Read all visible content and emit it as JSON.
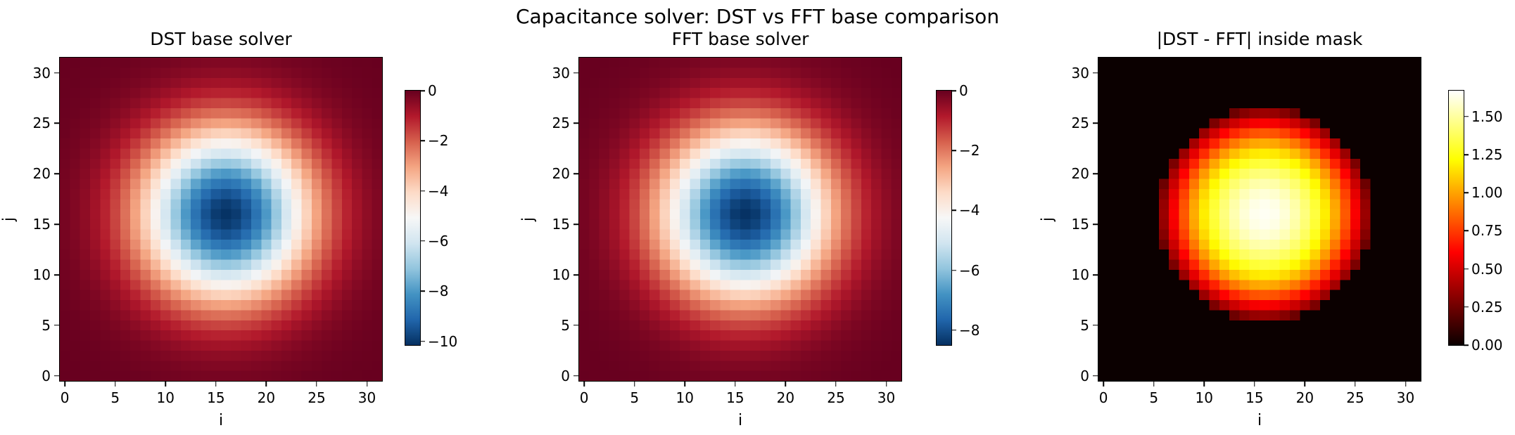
{
  "figure": {
    "suptitle": "Capacitance solver: DST vs FFT base comparison",
    "background_color": "#ffffff",
    "text_color": "#000000"
  },
  "colormaps": {
    "RdBu_r": [
      [
        0.0,
        "#053061"
      ],
      [
        0.1,
        "#2166ac"
      ],
      [
        0.2,
        "#4393c3"
      ],
      [
        0.3,
        "#92c5de"
      ],
      [
        0.4,
        "#d1e5f0"
      ],
      [
        0.5,
        "#f7f7f7"
      ],
      [
        0.6,
        "#fddbc7"
      ],
      [
        0.7,
        "#f4a582"
      ],
      [
        0.8,
        "#d6604d"
      ],
      [
        0.9,
        "#b2182b"
      ],
      [
        1.0,
        "#67001f"
      ]
    ],
    "hot": [
      [
        0.0,
        "#0b0000"
      ],
      [
        0.365,
        "#ff0000"
      ],
      [
        0.73,
        "#ffff00"
      ],
      [
        1.0,
        "#ffffff"
      ]
    ]
  },
  "chart_data": [
    {
      "type": "heatmap",
      "title": "DST base solver",
      "xlabel": "i",
      "ylabel": "j",
      "grid_size": 32,
      "x_range": [
        -0.5,
        31.5
      ],
      "y_range": [
        -0.5,
        31.5
      ],
      "center": [
        16,
        16
      ],
      "colormap": "RdBu_r",
      "vmin": -10.15,
      "vmax": 0,
      "x_tick_values": [
        0,
        5,
        10,
        15,
        20,
        25,
        30
      ],
      "x_tick_labels": [
        "0",
        "5",
        "10",
        "15",
        "20",
        "25",
        "30"
      ],
      "y_tick_values": [
        0,
        5,
        10,
        15,
        20,
        25,
        30
      ],
      "y_tick_labels": [
        "0",
        "5",
        "10",
        "15",
        "20",
        "25",
        "30"
      ],
      "colorbar_tick_values": [
        0,
        -2,
        -4,
        -6,
        -8,
        -10
      ],
      "colorbar_tick_labels": [
        "0",
        "−2",
        "−4",
        "−6",
        "−8",
        "−10"
      ],
      "radial_profile": [
        [
          0,
          -10.1
        ],
        [
          1,
          -9.95
        ],
        [
          2,
          -9.52
        ],
        [
          3,
          -8.85
        ],
        [
          4,
          -8.01
        ],
        [
          5,
          -7.02
        ],
        [
          6,
          -5.96
        ],
        [
          7,
          -4.91
        ],
        [
          8,
          -3.92
        ],
        [
          9,
          -3.03
        ],
        [
          10,
          -2.28
        ],
        [
          11,
          -1.66
        ],
        [
          12,
          -1.17
        ],
        [
          13,
          -0.81
        ],
        [
          14,
          -0.54
        ],
        [
          15,
          -0.35
        ],
        [
          16,
          -0.22
        ],
        [
          18,
          -0.08
        ],
        [
          20,
          -0.03
        ],
        [
          23,
          0
        ]
      ]
    },
    {
      "type": "heatmap",
      "title": "FFT base solver",
      "xlabel": "i",
      "ylabel": "j",
      "grid_size": 32,
      "x_range": [
        -0.5,
        31.5
      ],
      "y_range": [
        -0.5,
        31.5
      ],
      "center": [
        16,
        16
      ],
      "colormap": "RdBu_r",
      "vmin": -8.5,
      "vmax": 0,
      "x_tick_values": [
        0,
        5,
        10,
        15,
        20,
        25,
        30
      ],
      "x_tick_labels": [
        "0",
        "5",
        "10",
        "15",
        "20",
        "25",
        "30"
      ],
      "y_tick_values": [
        0,
        5,
        10,
        15,
        20,
        25,
        30
      ],
      "y_tick_labels": [
        "0",
        "5",
        "10",
        "15",
        "20",
        "25",
        "30"
      ],
      "colorbar_tick_values": [
        0,
        -2,
        -4,
        -6,
        -8
      ],
      "colorbar_tick_labels": [
        "0",
        "−2",
        "−4",
        "−6",
        "−8"
      ],
      "radial_profile": [
        [
          0,
          -8.47
        ],
        [
          1,
          -8.34
        ],
        [
          2,
          -7.98
        ],
        [
          3,
          -7.42
        ],
        [
          4,
          -6.72
        ],
        [
          5,
          -5.89
        ],
        [
          6,
          -5.0
        ],
        [
          7,
          -4.12
        ],
        [
          8,
          -3.29
        ],
        [
          9,
          -2.54
        ],
        [
          10,
          -1.91
        ],
        [
          11,
          -1.39
        ],
        [
          12,
          -0.98
        ],
        [
          13,
          -0.68
        ],
        [
          14,
          -0.45
        ],
        [
          15,
          -0.29
        ],
        [
          16,
          -0.18
        ],
        [
          18,
          -0.07
        ],
        [
          20,
          -0.02
        ],
        [
          23,
          0
        ]
      ]
    },
    {
      "type": "heatmap",
      "title": "|DST - FFT| inside mask",
      "xlabel": "i",
      "ylabel": "j",
      "grid_size": 32,
      "x_range": [
        -0.5,
        31.5
      ],
      "y_range": [
        -0.5,
        31.5
      ],
      "center": [
        16,
        16
      ],
      "colormap": "hot",
      "vmin": 0,
      "vmax": 1.67,
      "mask_radius": 10.5,
      "outside_mask_value": 0,
      "x_tick_values": [
        0,
        5,
        10,
        15,
        20,
        25,
        30
      ],
      "x_tick_labels": [
        "0",
        "5",
        "10",
        "15",
        "20",
        "25",
        "30"
      ],
      "y_tick_values": [
        0,
        5,
        10,
        15,
        20,
        25,
        30
      ],
      "y_tick_labels": [
        "0",
        "5",
        "10",
        "15",
        "20",
        "25",
        "30"
      ],
      "colorbar_tick_values": [
        1.5,
        1.25,
        1.0,
        0.75,
        0.5,
        0.25,
        0.0
      ],
      "colorbar_tick_labels": [
        "1.50",
        "1.25",
        "1.00",
        "0.75",
        "0.50",
        "0.25",
        "0.00"
      ],
      "radial_profile": [
        [
          0,
          1.65
        ],
        [
          1,
          1.64
        ],
        [
          2,
          1.6
        ],
        [
          3,
          1.53
        ],
        [
          4,
          1.44
        ],
        [
          5,
          1.33
        ],
        [
          6,
          1.18
        ],
        [
          7,
          1.02
        ],
        [
          8,
          0.82
        ],
        [
          9,
          0.6
        ],
        [
          10,
          0.36
        ],
        [
          10.5,
          0.23
        ]
      ]
    }
  ]
}
